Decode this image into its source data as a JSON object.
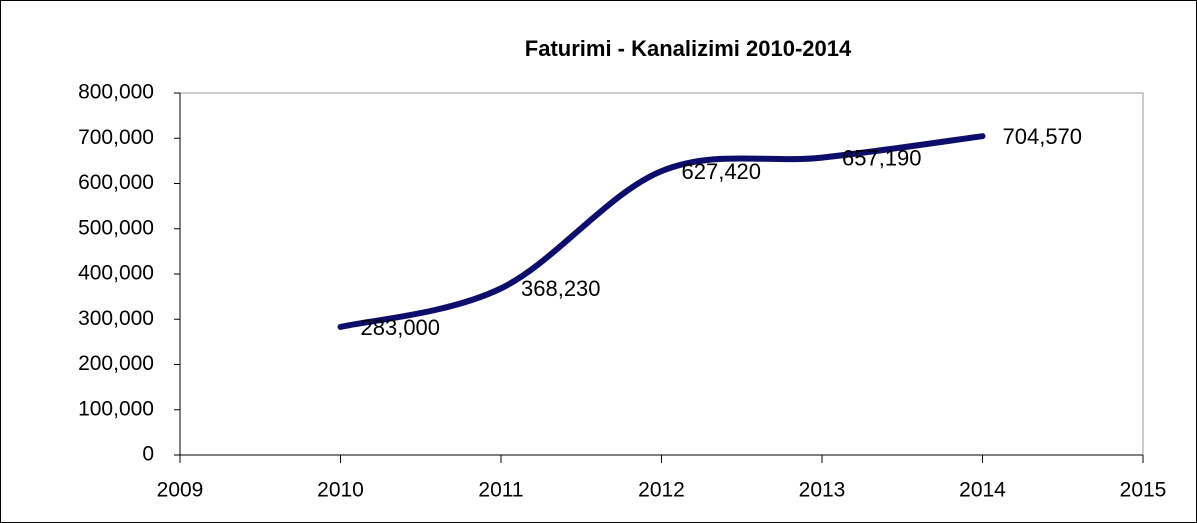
{
  "chart_data": {
    "type": "line",
    "title": "Faturimi - Kanalizimi  2010-2014",
    "x": [
      2010,
      2011,
      2012,
      2013,
      2014
    ],
    "series": [
      {
        "name": "Faturimi - Kanalizimi",
        "color": "#0d0d6b",
        "values": [
          283000,
          368230,
          627420,
          657190,
          704570
        ],
        "value_labels": [
          "283,000",
          "368,230",
          "627,420",
          "657,190",
          "704,570"
        ]
      }
    ],
    "xlim": [
      2009,
      2015
    ],
    "xticks": [
      2009,
      2010,
      2011,
      2012,
      2013,
      2014,
      2015
    ],
    "ylim": [
      0,
      800000
    ],
    "yticks": [
      0,
      {
        "value": 100000,
        "label": "100,000"
      },
      {
        "value": 200000,
        "label": "200,000"
      },
      {
        "value": 300000,
        "label": "300,000"
      },
      {
        "value": 400000,
        "label": "400,000"
      },
      {
        "value": 500000,
        "label": "500,000"
      },
      {
        "value": 600000,
        "label": "600,000"
      },
      {
        "value": 700000,
        "label": "700,000"
      },
      {
        "value": 800000,
        "label": "800,000"
      }
    ],
    "smooth": true
  }
}
